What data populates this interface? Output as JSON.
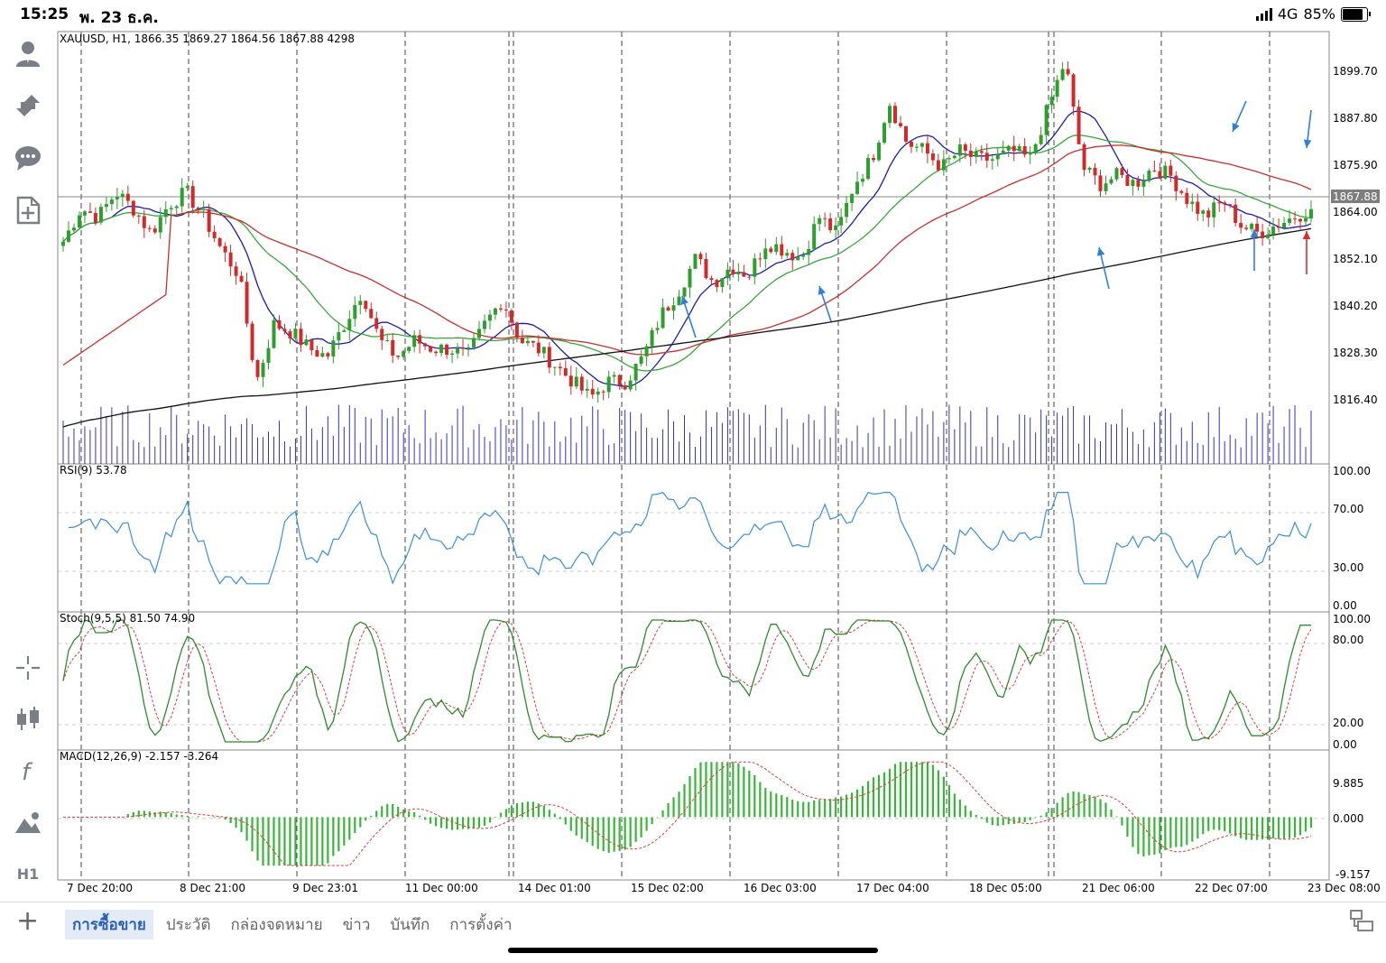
{
  "status_bar": {
    "time": "15:25",
    "date": "พ. 23 ธ.ค.",
    "network": "4G",
    "battery": "85%"
  },
  "toolbar": {
    "timeframe_label": "H1"
  },
  "chart": {
    "header": "XAUUSD, H1, 1866.35 1869.27 1864.56 1867.88 4298",
    "price_ticks": [
      "1899.70",
      "1887.80",
      "1875.90",
      "1864.00",
      "1852.10",
      "1840.20",
      "1828.30",
      "1816.40"
    ],
    "current_price": "1867.88",
    "rsi_label": "RSI(9) 53.78",
    "rsi_ticks": [
      "100.00",
      "70.00",
      "30.00",
      "0.00"
    ],
    "stoch_label": "Stoch(9,5,5) 81.50 74.90",
    "stoch_ticks": [
      "100.00",
      "80.00",
      "20.00",
      "0.00"
    ],
    "macd_label": "MACD(12,26,9) -2.157 -3.264",
    "macd_ticks": [
      "9.885",
      "0.000",
      "-9.157"
    ],
    "time_labels": [
      "7 Dec 20:00",
      "8 Dec 21:00",
      "9 Dec 23:01",
      "11 Dec 00:00",
      "14 Dec 01:00",
      "15 Dec 02:00",
      "16 Dec 03:00",
      "17 Dec 04:00",
      "18 Dec 05:00",
      "21 Dec 06:00",
      "22 Dec 07:00",
      "23 Dec 08:00"
    ]
  },
  "chart_data": {
    "type": "candlestick",
    "symbol": "XAUUSD",
    "timeframe": "H1",
    "last_bar": {
      "open": 1866.35,
      "high": 1869.27,
      "low": 1864.56,
      "close": 1867.88,
      "volume": 4298
    },
    "price_range": [
      1806,
      1911
    ],
    "close_path": [
      1860,
      1868,
      1866,
      1872,
      1868,
      1862,
      1869,
      1872,
      1866,
      1858,
      1852,
      1826,
      1840,
      1838,
      1834,
      1832,
      1840,
      1848,
      1836,
      1832,
      1836,
      1834,
      1834,
      1832,
      1840,
      1846,
      1836,
      1834,
      1830,
      1826,
      1822,
      1826,
      1826,
      1832,
      1842,
      1848,
      1856,
      1850,
      1854,
      1852,
      1860,
      1858,
      1856,
      1866,
      1862,
      1874,
      1880,
      1894,
      1884,
      1882,
      1878,
      1882,
      1880,
      1880,
      1882,
      1880,
      1892,
      1904,
      1878,
      1874,
      1876,
      1874,
      1878,
      1876,
      1870,
      1866,
      1870,
      1864,
      1862,
      1864,
      1866,
      1868
    ],
    "indicators": {
      "rsi": {
        "period": 9,
        "value": 53.78,
        "levels": [
          30,
          70
        ],
        "range": [
          0,
          100
        ]
      },
      "stochastic": {
        "params": "9,5,5",
        "k": 81.5,
        "d": 74.9,
        "levels": [
          20,
          80
        ],
        "range": [
          0,
          100
        ]
      },
      "macd": {
        "params": "12,26,9",
        "macd": -2.157,
        "signal": -3.264,
        "range": [
          -9.157,
          9.885
        ]
      }
    },
    "moving_averages": [
      {
        "color": "#1c1ca8"
      },
      {
        "color": "#3aa53a"
      },
      {
        "color": "#c62f2f"
      },
      {
        "color": "#111111"
      }
    ],
    "colors": {
      "up": "#2e9e2e",
      "down": "#d02b2b",
      "volume": "#3434b0",
      "rsi": "#3b8ed8",
      "stoch_k": "#2e8a2e",
      "stoch_d": "#d04040",
      "macd_hist": "#39b539",
      "macd_signal": "#d04040",
      "arrow_blue": "#2f7fd4",
      "arrow_red": "#d03030"
    }
  },
  "tabs": [
    "การซื้อขาย",
    "ประวัติ",
    "กล่องจดหมาย",
    "ข่าว",
    "บันทึก",
    "การตั้งค่า"
  ],
  "active_tab": 0
}
